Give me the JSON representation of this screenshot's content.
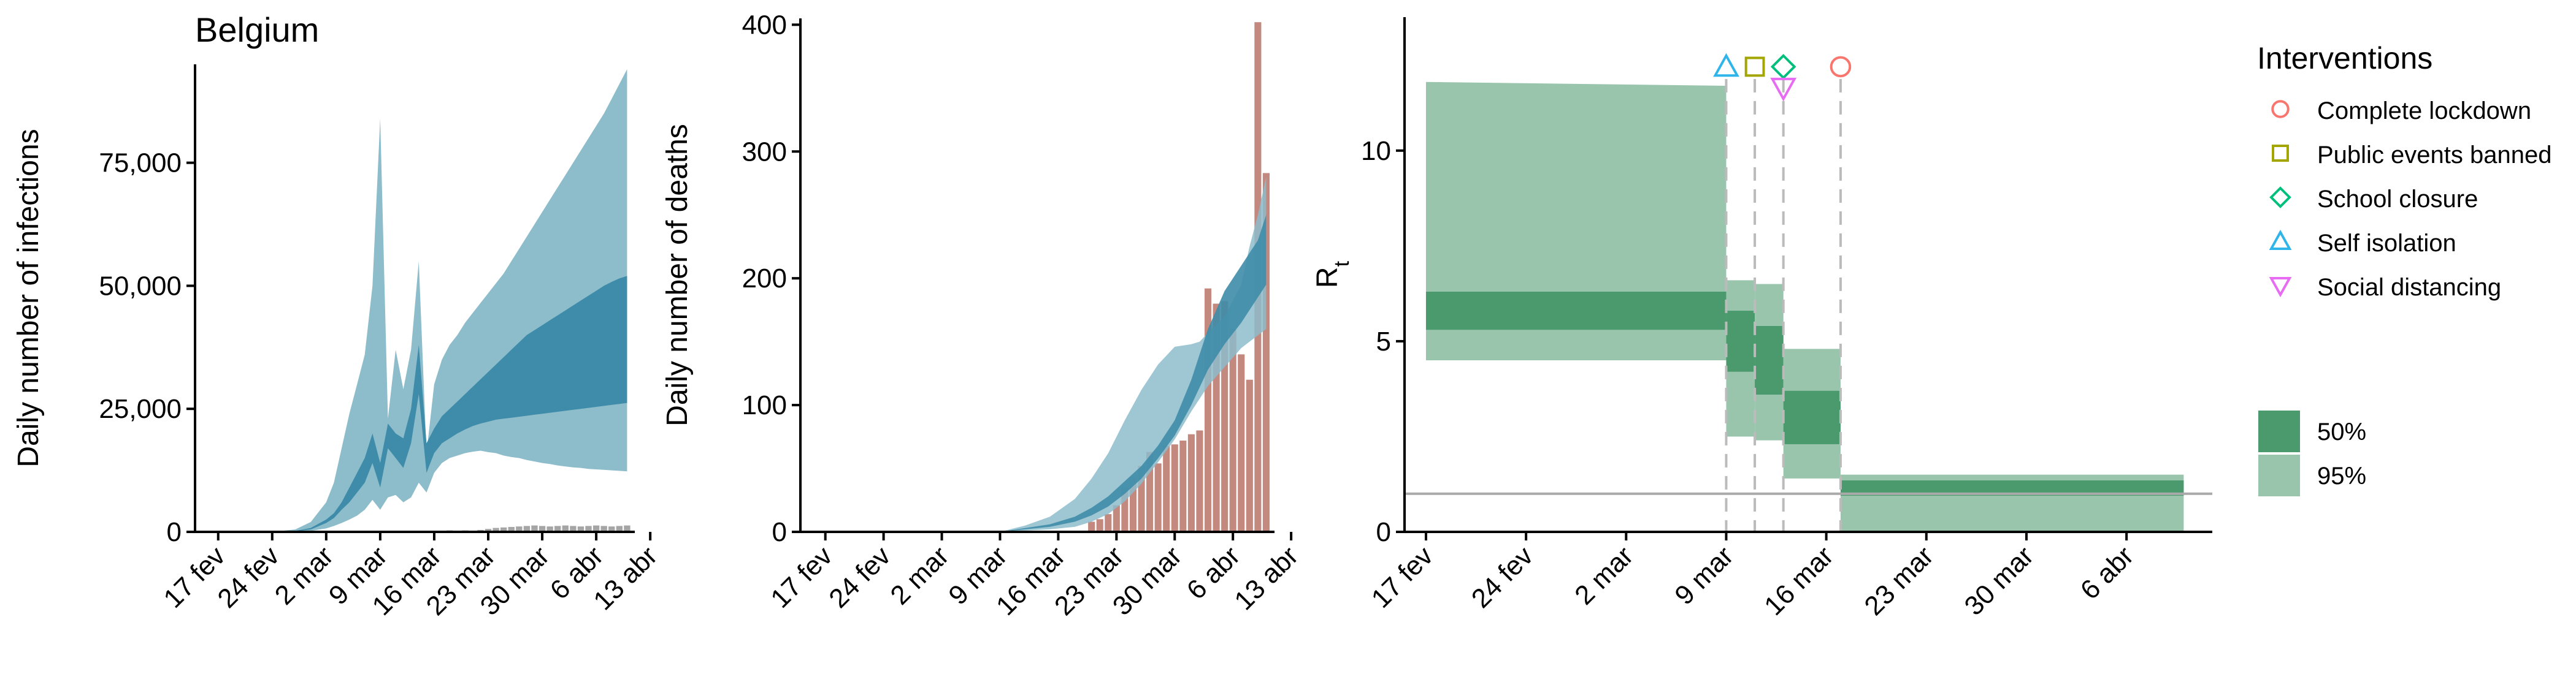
{
  "chart_data": [
    {
      "type": "area",
      "title": "Belgium",
      "xlabel": "",
      "ylabel": "Daily number of infections",
      "ylim": [
        0,
        95000
      ],
      "yticks": [
        0,
        25000,
        50000,
        75000
      ],
      "ytick_labels": [
        "0",
        "25,000",
        "50,000",
        "75,000"
      ],
      "xlim": [
        -3,
        54
      ],
      "xticks": [
        0,
        7,
        14,
        21,
        28,
        35,
        42,
        49,
        56
      ],
      "xtick_labels": [
        "17 fev",
        "24 fev",
        "2 mar",
        "9 mar",
        "16 mar",
        "23 mar",
        "30 mar",
        "6 abr",
        "13 abr"
      ],
      "colors": {
        "band95": "#8dbccb",
        "band50": "#3e8ca9",
        "bars": "#7f7f7f"
      },
      "series": [
        {
          "name": "",
          "x": [
            0,
            7,
            10,
            12,
            14,
            15,
            16,
            17,
            18,
            19,
            20,
            21,
            22,
            23,
            24,
            25,
            26,
            27,
            28,
            29,
            30,
            31,
            32,
            33,
            34,
            35,
            36,
            37,
            38,
            39,
            40,
            41,
            42,
            43,
            44,
            45,
            46,
            47,
            48,
            49,
            50,
            51,
            52,
            53
          ],
          "lower": [
            0,
            0,
            50,
            200,
            700,
            1200,
            1800,
            2500,
            3300,
            4500,
            6500,
            4500,
            7000,
            7500,
            6000,
            7000,
            10000,
            8000,
            12000,
            14000,
            15000,
            15500,
            16000,
            16300,
            16500,
            16200,
            16000,
            15500,
            15200,
            15000,
            14600,
            14300,
            14000,
            13800,
            13500,
            13300,
            13100,
            13000,
            12800,
            12700,
            12600,
            12500,
            12400,
            12300
          ],
          "low50": [
            0,
            0,
            100,
            500,
            1800,
            2800,
            4500,
            6000,
            8000,
            10000,
            14000,
            9000,
            17000,
            15000,
            13000,
            18000,
            28000,
            12000,
            16000,
            18000,
            19000,
            20000,
            20800,
            21500,
            22000,
            22400,
            22800,
            23000,
            23200,
            23400,
            23600,
            23800,
            24000,
            24200,
            24400,
            24600,
            24800,
            25000,
            25200,
            25400,
            25600,
            25800,
            26000,
            26200
          ],
          "high50": [
            0,
            0,
            200,
            800,
            2500,
            3800,
            6000,
            9000,
            12000,
            15000,
            20000,
            14000,
            22000,
            20000,
            19000,
            25000,
            38000,
            18000,
            21000,
            23500,
            25000,
            26500,
            28000,
            29500,
            31000,
            32500,
            34000,
            35500,
            37000,
            38500,
            40000,
            41000,
            42000,
            43000,
            44000,
            45000,
            46000,
            47000,
            48000,
            49000,
            50000,
            50800,
            51500,
            52000
          ],
          "upper": [
            0,
            0,
            500,
            2000,
            6000,
            10000,
            17000,
            24000,
            30000,
            36000,
            50000,
            84000,
            23000,
            37000,
            29000,
            37000,
            55000,
            16000,
            30000,
            35000,
            38000,
            40000,
            42500,
            44500,
            46500,
            48500,
            50500,
            52500,
            55000,
            57500,
            60000,
            62500,
            65000,
            67500,
            70000,
            72500,
            75000,
            77500,
            80000,
            82500,
            85000,
            88000,
            91000,
            94000
          ]
        },
        {
          "name": "",
          "type": "bar",
          "x": [
            24,
            26,
            28,
            30,
            32,
            34,
            35,
            36,
            37,
            38,
            39,
            40,
            41,
            42,
            43,
            44,
            45,
            46,
            47,
            48,
            49,
            50,
            51,
            52,
            53
          ],
          "values": [
            100,
            100,
            200,
            300,
            300,
            400,
            600,
            800,
            900,
            1000,
            1100,
            1200,
            1300,
            1200,
            1100,
            1200,
            1300,
            1200,
            1100,
            1200,
            1300,
            1200,
            1100,
            1200,
            1300
          ]
        }
      ]
    },
    {
      "type": "area",
      "title": "",
      "xlabel": "",
      "ylabel": "Daily number of deaths",
      "ylim": [
        0,
        405
      ],
      "yticks": [
        0,
        100,
        200,
        300,
        400
      ],
      "ytick_labels": [
        "0",
        "100",
        "200",
        "300",
        "400"
      ],
      "xlim": [
        -3,
        54
      ],
      "xticks": [
        0,
        7,
        14,
        21,
        28,
        35,
        42,
        49,
        56
      ],
      "xtick_labels": [
        "17 fev",
        "24 fev",
        "2 mar",
        "9 mar",
        "16 mar",
        "23 mar",
        "30 mar",
        "6 abr",
        "13 abr"
      ],
      "colors": {
        "band95": "#8dbccb",
        "band50": "#3e8ca9",
        "bars": "#b97468"
      },
      "series": [
        {
          "name": "",
          "x": [
            0,
            14,
            21,
            24,
            27,
            30,
            32,
            34,
            36,
            38,
            40,
            42,
            44,
            45,
            46,
            48,
            50,
            51,
            52,
            53
          ],
          "lower": [
            0,
            0,
            0,
            1,
            2,
            4,
            8,
            14,
            24,
            38,
            55,
            73,
            95,
            105,
            115,
            130,
            145,
            150,
            155,
            160
          ],
          "low50": [
            0,
            0,
            0,
            2,
            4,
            8,
            13,
            20,
            30,
            42,
            58,
            76,
            100,
            114,
            128,
            148,
            165,
            175,
            185,
            195
          ],
          "high50": [
            0,
            0,
            0,
            3,
            6,
            12,
            19,
            28,
            40,
            52,
            68,
            88,
            120,
            140,
            160,
            190,
            210,
            220,
            230,
            250
          ],
          "upper": [
            0,
            0,
            0,
            5,
            12,
            26,
            42,
            62,
            88,
            112,
            132,
            146,
            148,
            150,
            157,
            170,
            195,
            225,
            250,
            280
          ]
        },
        {
          "name": "",
          "type": "bar",
          "x": [
            32,
            33,
            34,
            35,
            36,
            37,
            38,
            39,
            40,
            41,
            42,
            43,
            44,
            45,
            46,
            47,
            48,
            49,
            50,
            51,
            52,
            53
          ],
          "values": [
            8,
            10,
            14,
            21,
            35,
            43,
            52,
            63,
            54,
            68,
            69,
            72,
            77,
            80,
            192,
            180,
            182,
            160,
            140,
            120,
            402,
            283
          ]
        }
      ]
    },
    {
      "type": "area",
      "title": "",
      "xlabel": "",
      "ylabel": "R",
      "ylabel_subscript": "t",
      "ylim": [
        0,
        13.5
      ],
      "yticks": [
        0,
        5,
        10
      ],
      "ytick_labels": [
        "0",
        "5",
        "10"
      ],
      "xlim": [
        -1.5,
        55
      ],
      "xticks": [
        0,
        7,
        14,
        21,
        28,
        35,
        42,
        49
      ],
      "xtick_labels": [
        "17 fev",
        "24 fev",
        "2 mar",
        "9 mar",
        "16 mar",
        "23 mar",
        "30 mar",
        "6 abr"
      ],
      "reference_line": 1,
      "colors": {
        "band95": "#99c5ad",
        "band50": "#4a9a6d",
        "reference": "#aaaaaa"
      },
      "series": [
        {
          "name": "",
          "x_start": 0,
          "x_end": 21,
          "lower95": 4.5,
          "upper95": 11.8,
          "lower50": 5.3,
          "upper50": 6.3,
          "upper95_end": 11.7
        },
        {
          "name": "",
          "x_start": 21,
          "x_end": 23,
          "lower95": 2.5,
          "upper95": 6.6,
          "lower50": 4.2,
          "upper50": 5.8
        },
        {
          "name": "",
          "x_start": 23,
          "x_end": 25,
          "lower95": 2.4,
          "upper95": 6.5,
          "lower50": 3.6,
          "upper50": 5.4
        },
        {
          "name": "",
          "x_start": 25,
          "x_end": 29,
          "lower95": 1.4,
          "upper95": 4.8,
          "lower50": 2.3,
          "upper50": 3.7
        },
        {
          "name": "",
          "x_start": 29,
          "x_end": 53,
          "lower95": 0.0,
          "upper95": 1.5,
          "lower50": 0.95,
          "upper50": 1.35
        }
      ],
      "interventions": [
        {
          "name": "Self isolation",
          "x": 21,
          "symbol": "triangle-up",
          "color": "#2fb5ea",
          "y": 12.2
        },
        {
          "name": "Public events banned",
          "x": 23,
          "symbol": "square",
          "color": "#a3a500",
          "y": 12.2
        },
        {
          "name": "School closure",
          "x": 25,
          "symbol": "diamond",
          "color": "#00bf7d",
          "y": 12.2
        },
        {
          "name": "Social distancing",
          "x": 25,
          "symbol": "triangle-down",
          "color": "#e76bf3",
          "y": 12.0
        },
        {
          "name": "Complete lockdown",
          "x": 29,
          "symbol": "circle",
          "color": "#f8766d",
          "y": 12.2
        }
      ]
    }
  ],
  "legend": {
    "title": "Interventions",
    "items": [
      {
        "label": "Complete lockdown",
        "symbol": "circle",
        "color": "#f8766d"
      },
      {
        "label": "Public events banned",
        "symbol": "square",
        "color": "#a3a500"
      },
      {
        "label": "School closure",
        "symbol": "diamond",
        "color": "#00bf7d"
      },
      {
        "label": "Self isolation",
        "symbol": "triangle-up",
        "color": "#2fb5ea"
      },
      {
        "label": "Social distancing",
        "symbol": "triangle-down",
        "color": "#e76bf3"
      }
    ],
    "bands": [
      {
        "label": "50%",
        "color": "#4a9a6d"
      },
      {
        "label": "95%",
        "color": "#99c5ad"
      }
    ]
  }
}
